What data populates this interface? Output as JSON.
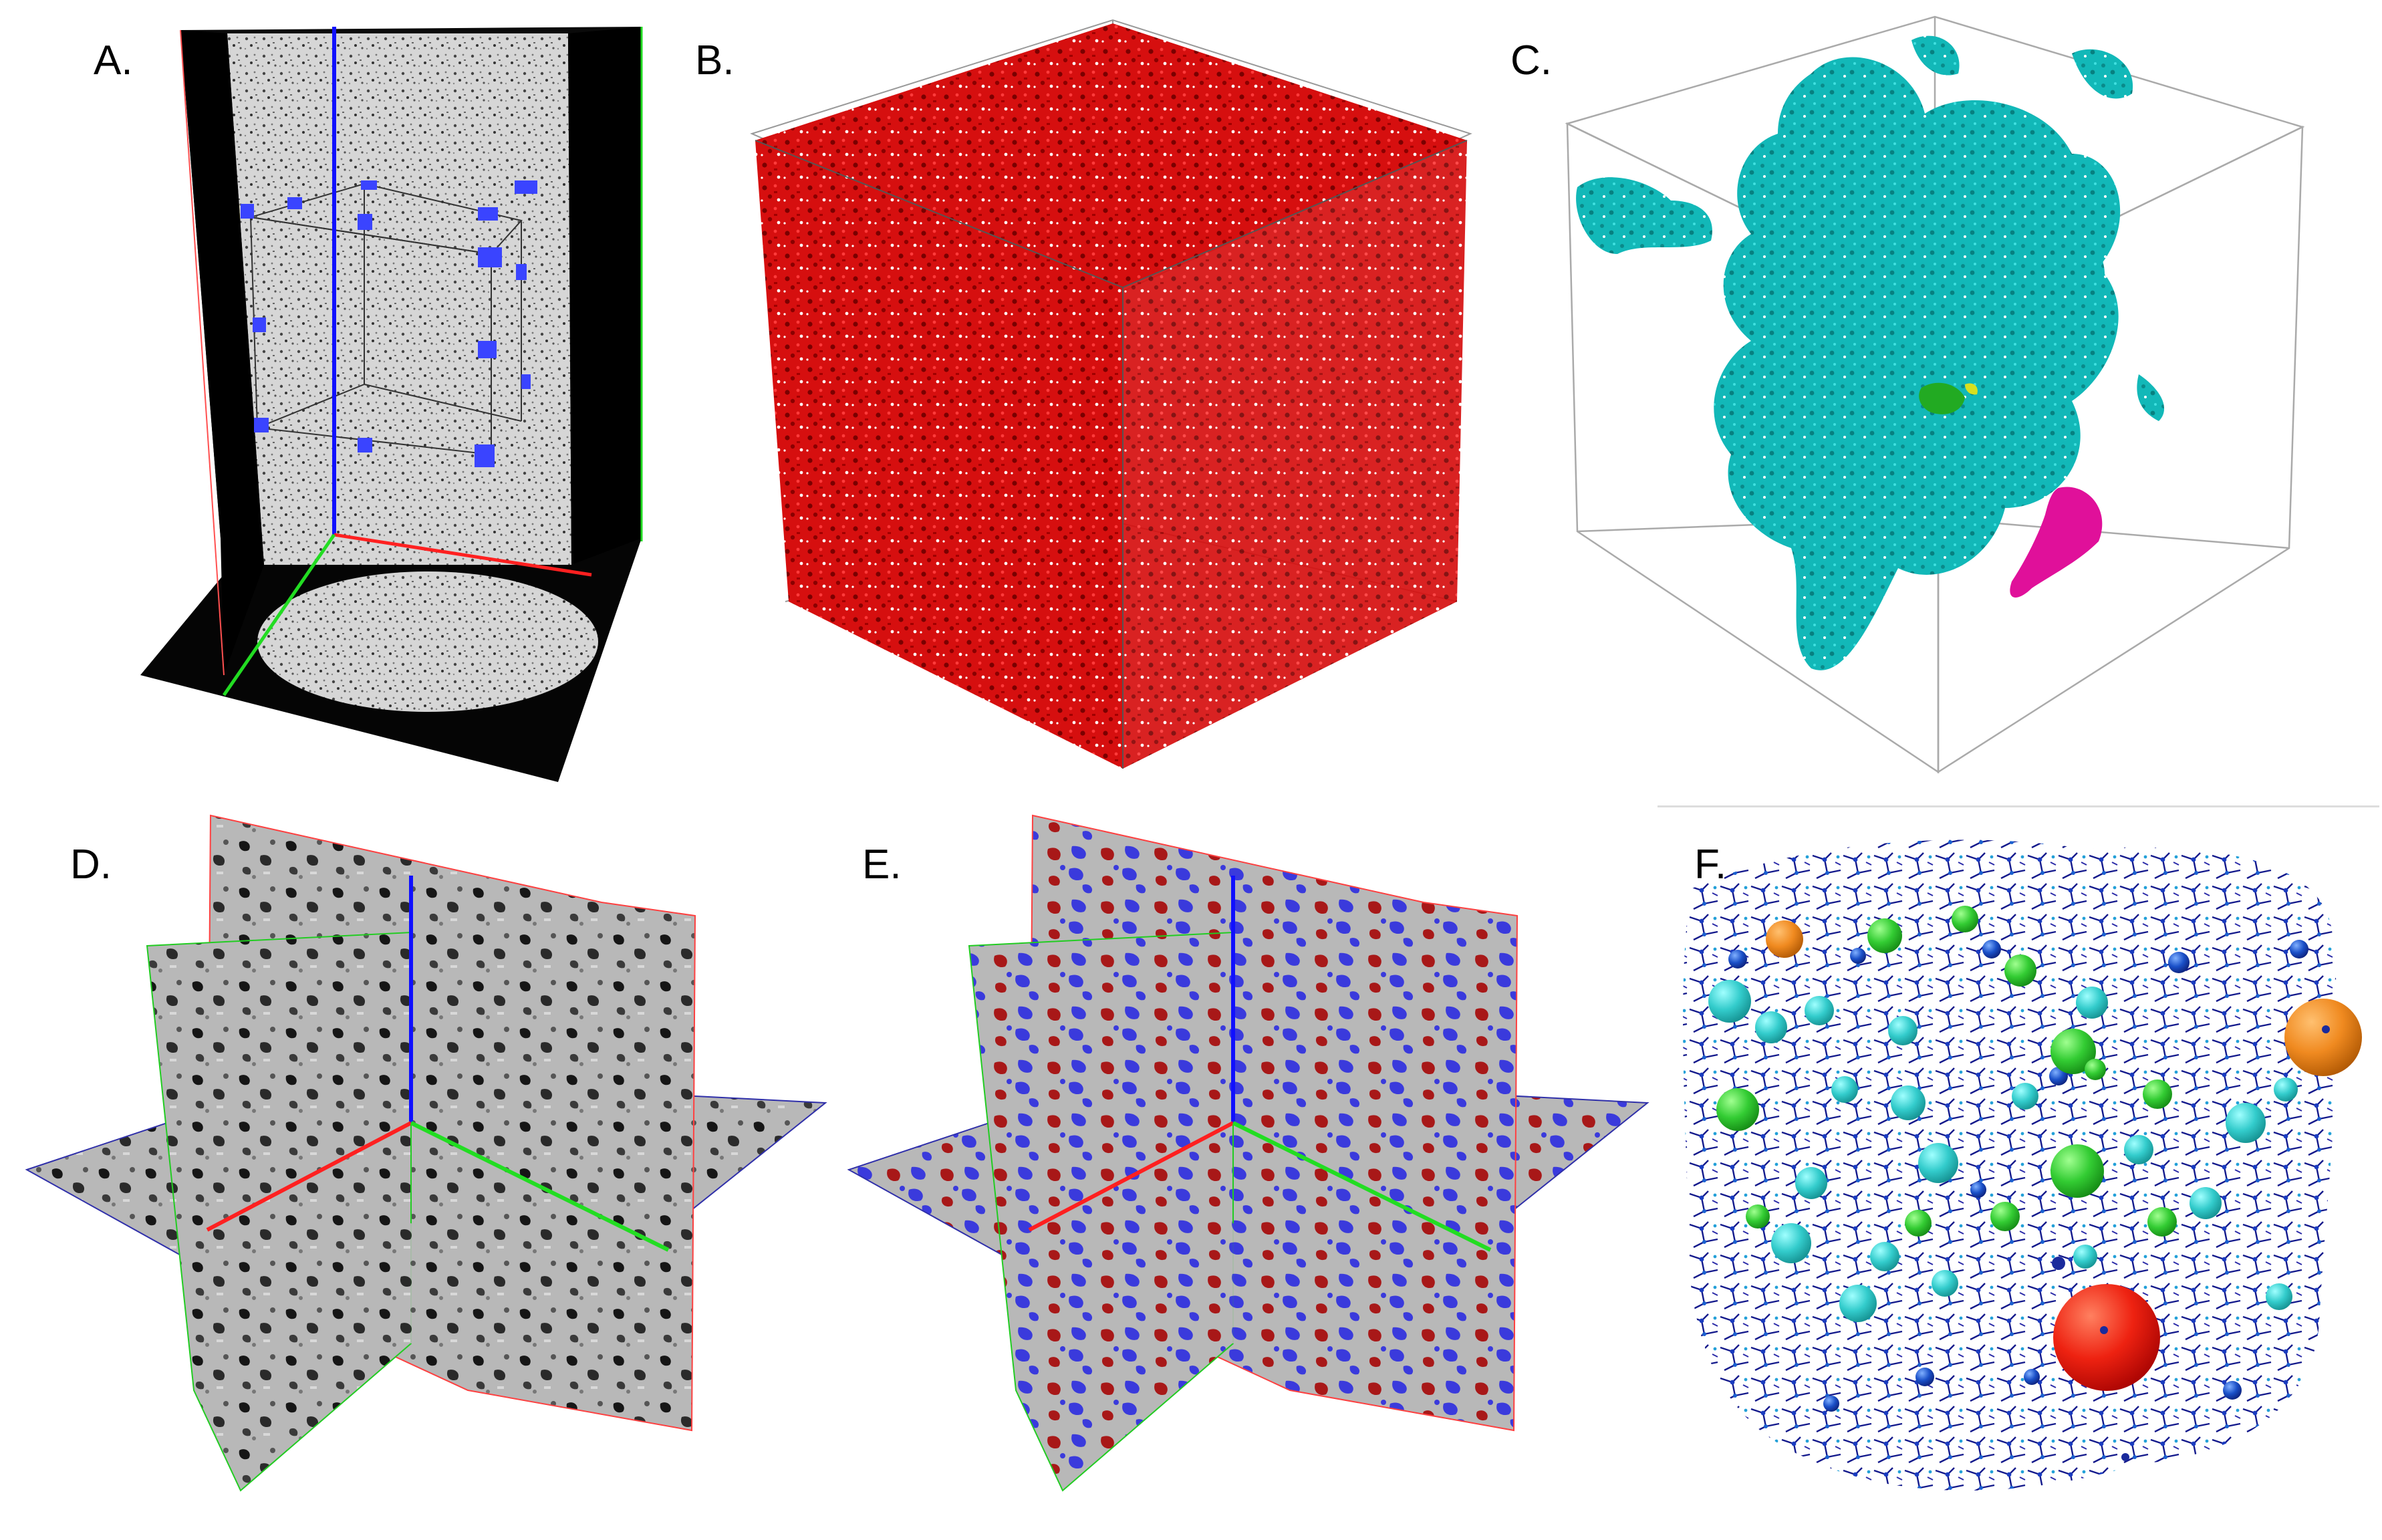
{
  "figure": {
    "panels": [
      {
        "id": "A",
        "label": "A.",
        "content": "Cylindrical CT sample with orthogonal slice planes and a blue-marked sub-volume cube"
      },
      {
        "id": "B",
        "label": "B.",
        "content": "3D rendering of segmented pore space (red) in bounding box"
      },
      {
        "id": "C",
        "label": "C.",
        "content": "Connected pore clusters: large cyan cluster with small green and magenta clusters"
      },
      {
        "id": "D",
        "label": "D.",
        "content": "Three orthogonal grayscale CT slices"
      },
      {
        "id": "E",
        "label": "E.",
        "content": "Orthogonal slices with red and blue phase segmentation overlay"
      },
      {
        "id": "F",
        "label": "F.",
        "content": "Pore network model with spheres (pores) and throats colored by size"
      }
    ],
    "colors": {
      "axis_x": "#ff2020",
      "axis_y": "#22dd22",
      "axis_z": "#1010ff",
      "pore_red": "#cc0000",
      "cluster_cyan": "#12b8b8",
      "cluster_green": "#22aa22",
      "cluster_magenta": "#e0109a",
      "overlay_red": "#a81818",
      "overlay_blue": "#3a3adc",
      "network_navy": "#141a8c",
      "sphere_red": "#ee2211",
      "sphere_orange": "#f08a20",
      "sphere_green": "#33cc33",
      "sphere_teal": "#33cccc"
    }
  }
}
